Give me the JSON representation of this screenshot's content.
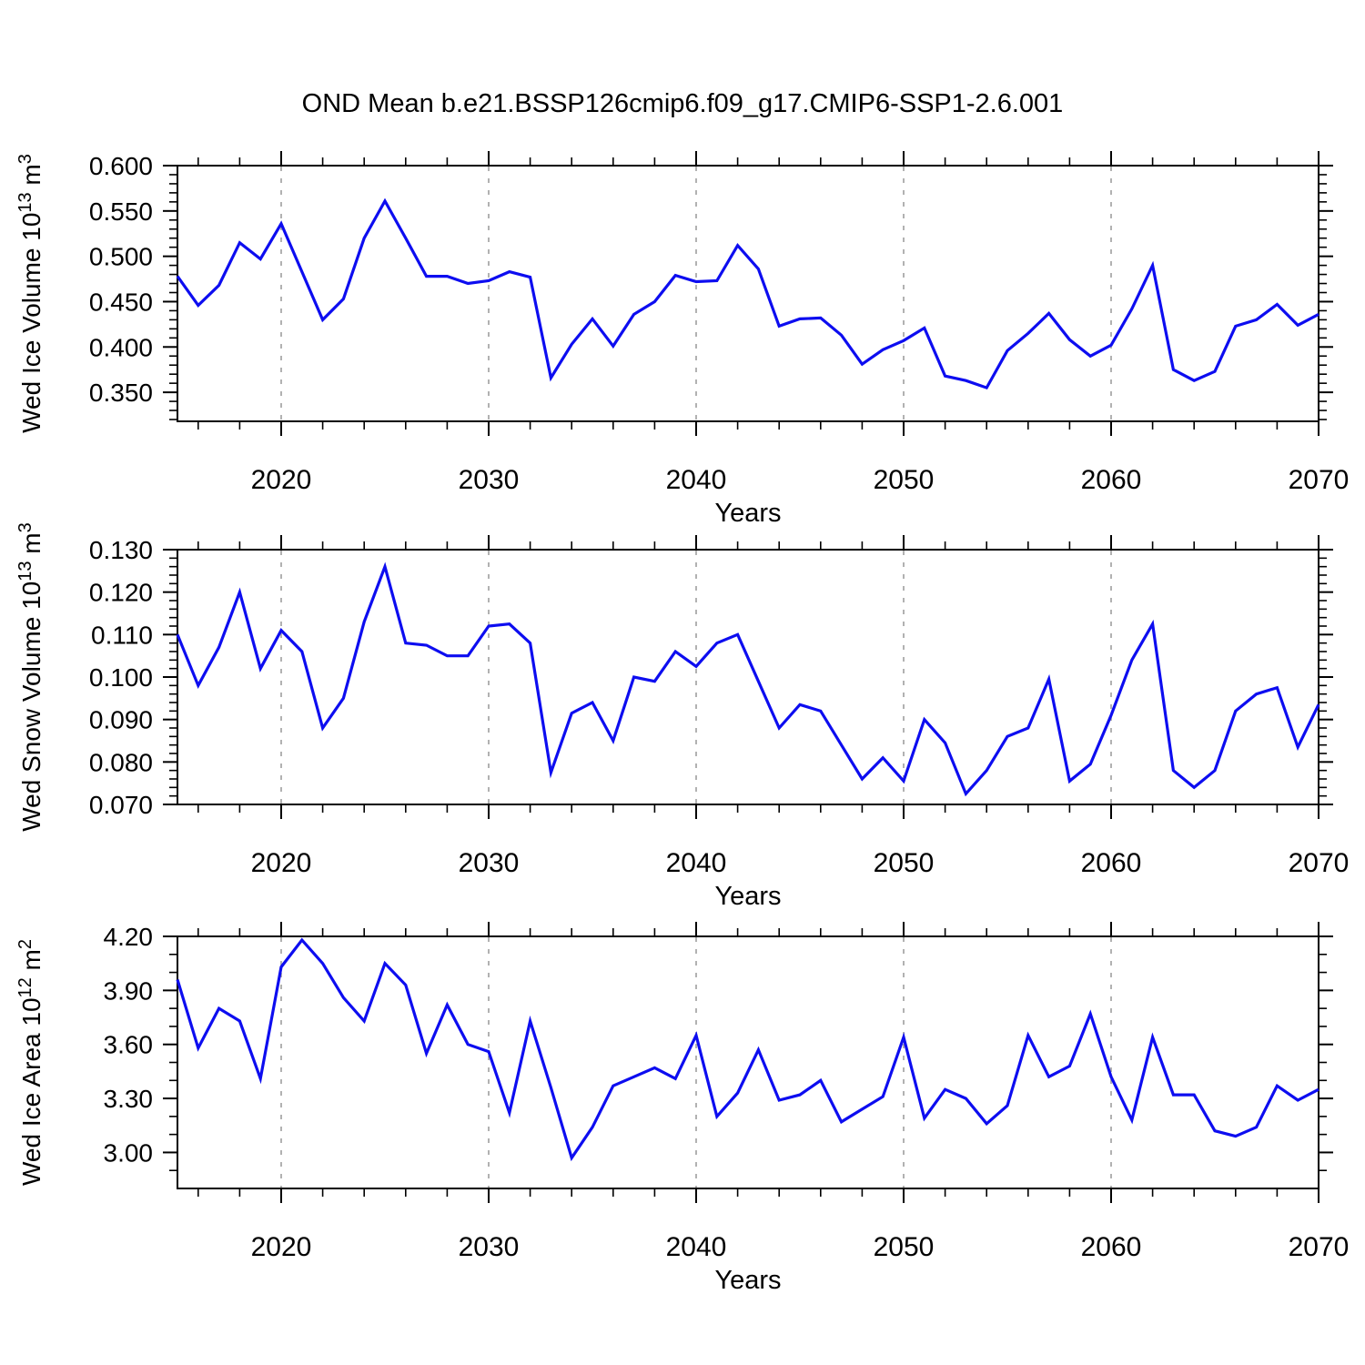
{
  "title": "OND Mean b.e21.BSSP126cmip6.f09_g17.CMIP6-SSP1-2.6.001",
  "xlabel": "Years",
  "colors": {
    "line": "#0d0df0",
    "axis": "#000000",
    "grid": "#9e9e9e",
    "background": "#ffffff"
  },
  "years": [
    2015,
    2016,
    2017,
    2018,
    2019,
    2020,
    2021,
    2022,
    2023,
    2024,
    2025,
    2026,
    2027,
    2028,
    2029,
    2030,
    2031,
    2032,
    2033,
    2034,
    2035,
    2036,
    2037,
    2038,
    2039,
    2040,
    2041,
    2042,
    2043,
    2044,
    2045,
    2046,
    2047,
    2048,
    2049,
    2050,
    2051,
    2052,
    2053,
    2054,
    2055,
    2056,
    2057,
    2058,
    2059,
    2060,
    2061,
    2062,
    2063,
    2064,
    2065,
    2066,
    2067,
    2068,
    2069,
    2070
  ],
  "chart_data": [
    {
      "type": "line",
      "name": "wed-ice-volume",
      "ylabel_plain": "Wed Ice Volume 10^13 m^3",
      "ylabel_parts": [
        {
          "t": "Wed Ice Volume 10"
        },
        {
          "sup": "13"
        },
        {
          "t": " m"
        },
        {
          "sup": "3"
        }
      ],
      "xlabel": "Years",
      "xlim": [
        2015,
        2070
      ],
      "ylim": [
        0.318,
        0.6
      ],
      "y_major_ticks": [
        0.35,
        0.4,
        0.45,
        0.5,
        0.55,
        0.6
      ],
      "y_tick_labels": [
        "0.350",
        "0.400",
        "0.450",
        "0.500",
        "0.550",
        "0.600"
      ],
      "y_minor_step": 0.01,
      "x_major_ticks": [
        2020,
        2030,
        2040,
        2050,
        2060,
        2070
      ],
      "x_minor_step": 2,
      "gridline_years": [
        2020,
        2030,
        2040,
        2050,
        2060
      ],
      "grid": true,
      "legend": "none",
      "values": [
        0.478,
        0.446,
        0.468,
        0.515,
        0.497,
        0.536,
        0.483,
        0.43,
        0.453,
        0.52,
        0.561,
        0.52,
        0.478,
        0.478,
        0.47,
        0.473,
        0.483,
        0.477,
        0.366,
        0.403,
        0.431,
        0.401,
        0.436,
        0.45,
        0.479,
        0.472,
        0.473,
        0.512,
        0.486,
        0.423,
        0.431,
        0.432,
        0.413,
        0.381,
        0.397,
        0.407,
        0.421,
        0.368,
        0.363,
        0.355,
        0.396,
        0.415,
        0.437,
        0.408,
        0.39,
        0.402,
        0.442,
        0.49,
        0.375,
        0.363,
        0.373,
        0.423,
        0.43,
        0.447,
        0.424,
        0.436
      ]
    },
    {
      "type": "line",
      "name": "wed-snow-volume",
      "ylabel_plain": "Wed Snow Volume 10^13 m^3",
      "ylabel_parts": [
        {
          "t": "Wed Snow Volume 10"
        },
        {
          "sup": "13"
        },
        {
          "t": " m"
        },
        {
          "sup": "3"
        }
      ],
      "xlabel": "Years",
      "xlim": [
        2015,
        2070
      ],
      "ylim": [
        0.07,
        0.13
      ],
      "y_major_ticks": [
        0.07,
        0.08,
        0.09,
        0.1,
        0.11,
        0.12,
        0.13
      ],
      "y_tick_labels": [
        "0.070",
        "0.080",
        "0.090",
        "0.100",
        "0.110",
        "0.120",
        "0.130"
      ],
      "y_minor_step": 0.002,
      "x_major_ticks": [
        2020,
        2030,
        2040,
        2050,
        2060,
        2070
      ],
      "x_minor_step": 2,
      "gridline_years": [
        2020,
        2030,
        2040,
        2050,
        2060
      ],
      "grid": true,
      "legend": "none",
      "values": [
        0.11,
        0.098,
        0.107,
        0.12,
        0.102,
        0.111,
        0.106,
        0.088,
        0.095,
        0.113,
        0.126,
        0.108,
        0.1075,
        0.105,
        0.105,
        0.112,
        0.1125,
        0.108,
        0.0775,
        0.0915,
        0.094,
        0.085,
        0.1,
        0.099,
        0.106,
        0.1025,
        0.108,
        0.11,
        0.099,
        0.088,
        0.0935,
        0.092,
        0.084,
        0.076,
        0.081,
        0.0755,
        0.09,
        0.0845,
        0.0725,
        0.078,
        0.086,
        0.088,
        0.0995,
        0.0755,
        0.0795,
        0.091,
        0.104,
        0.1125,
        0.078,
        0.074,
        0.078,
        0.092,
        0.096,
        0.0975,
        0.0835,
        0.0935
      ]
    },
    {
      "type": "line",
      "name": "wed-ice-area",
      "ylabel_plain": "Wed Ice Area 10^12 m^2",
      "ylabel_parts": [
        {
          "t": "Wed Ice Area 10"
        },
        {
          "sup": "12"
        },
        {
          "t": " m"
        },
        {
          "sup": "2"
        }
      ],
      "xlabel": "Years",
      "xlim": [
        2015,
        2070
      ],
      "ylim": [
        2.8,
        4.2
      ],
      "y_major_ticks": [
        3.0,
        3.3,
        3.6,
        3.9,
        4.2
      ],
      "y_tick_labels": [
        "3.00",
        "3.30",
        "3.60",
        "3.90",
        "4.20"
      ],
      "y_minor_step": 0.1,
      "x_major_ticks": [
        2020,
        2030,
        2040,
        2050,
        2060,
        2070
      ],
      "x_minor_step": 2,
      "gridline_years": [
        2020,
        2030,
        2040,
        2050,
        2060
      ],
      "grid": true,
      "legend": "none",
      "values": [
        3.96,
        3.58,
        3.8,
        3.73,
        3.41,
        4.03,
        4.18,
        4.05,
        3.86,
        3.73,
        4.05,
        3.93,
        3.55,
        3.82,
        3.6,
        3.56,
        3.22,
        3.73,
        3.36,
        2.97,
        3.14,
        3.37,
        3.42,
        3.47,
        3.41,
        3.65,
        3.2,
        3.33,
        3.57,
        3.29,
        3.32,
        3.4,
        3.17,
        3.24,
        3.31,
        3.64,
        3.19,
        3.35,
        3.3,
        3.16,
        3.26,
        3.65,
        3.42,
        3.48,
        3.77,
        3.42,
        3.18,
        3.64,
        3.32,
        3.32,
        3.12,
        3.09,
        3.14,
        3.37,
        3.29,
        3.35
      ]
    }
  ]
}
